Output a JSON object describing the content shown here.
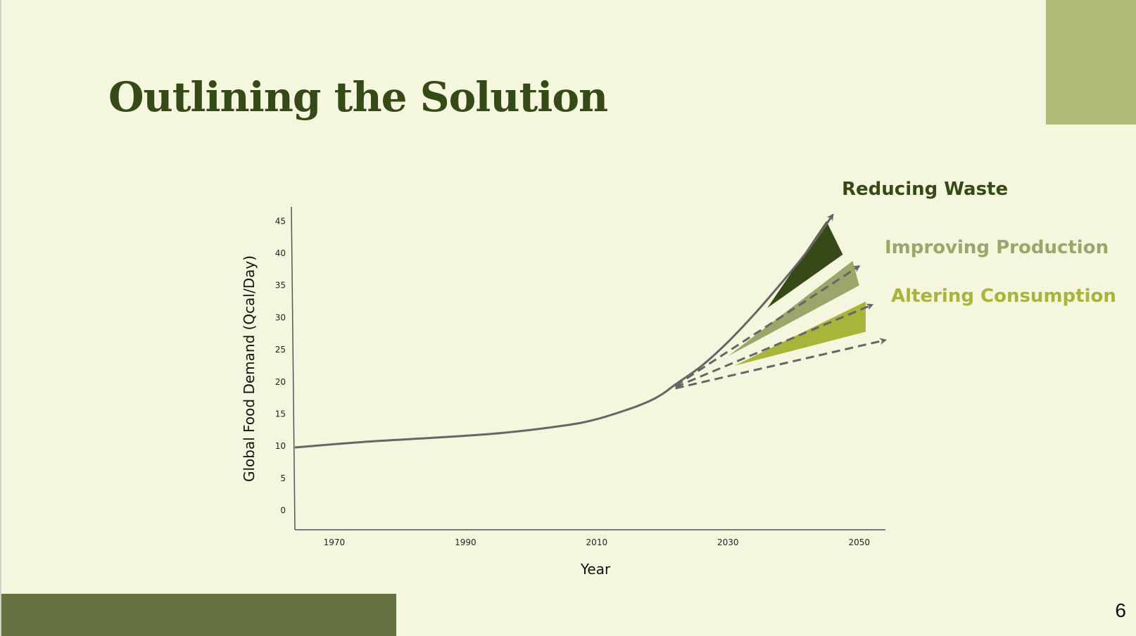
{
  "slide": {
    "title": "Outlining the Solution",
    "page_number": "6"
  },
  "colors": {
    "background": "#f4f6de",
    "title": "#364a17",
    "corner_block": "#b0bb78",
    "bottom_block": "#647241",
    "line": "#666666",
    "reducing_waste": "#364a17",
    "improving_production": "#9aa66a",
    "altering_consumption": "#a6b63b"
  },
  "chart_data": {
    "type": "line",
    "title": "",
    "xlabel": "Year",
    "ylabel": "Global Food Demand (Qcal/Day)",
    "xlim": [
      1964,
      2054
    ],
    "ylim": [
      -3,
      47
    ],
    "x_ticks": [
      "1970",
      "1990",
      "2010",
      "2030",
      "2050"
    ],
    "y_ticks": [
      "0",
      "5",
      "10",
      "15",
      "20",
      "25",
      "30",
      "35",
      "40",
      "45"
    ],
    "grid": false,
    "series": [
      {
        "name": "",
        "x": [
          1964,
          1975,
          1985,
          1995,
          2005,
          2010,
          2015,
          2018,
          2020,
          2022,
          2026,
          2030,
          2034,
          2038,
          2042,
          2046
        ],
        "y": [
          9.8,
          10.7,
          11.3,
          12.0,
          13.2,
          14.2,
          15.8,
          17.0,
          18.1,
          19.6,
          22.5,
          26.2,
          30.5,
          35.2,
          40.2,
          46.0
        ]
      }
    ],
    "scenarios": [
      {
        "name": "Reducing Waste",
        "x": [
          2022,
          2050
        ],
        "y": [
          19.4,
          38.0
        ],
        "wedge": {
          "x": [
            2036,
            2045,
            2047.5
          ],
          "y": [
            31.5,
            45.0,
            39.8
          ]
        }
      },
      {
        "name": "Improving Production",
        "x": [
          2022,
          2052
        ],
        "y": [
          19.2,
          32.0
        ],
        "wedge": {
          "x": [
            2030,
            2049,
            2050
          ],
          "y": [
            24.0,
            38.8,
            35.0
          ]
        }
      },
      {
        "name": "Altering Consumption",
        "x": [
          2022,
          2054
        ],
        "y": [
          19.0,
          26.5
        ],
        "wedge": {
          "x": [
            2031,
            2051,
            2051
          ],
          "y": [
            22.5,
            32.5,
            27.8
          ]
        }
      }
    ]
  }
}
